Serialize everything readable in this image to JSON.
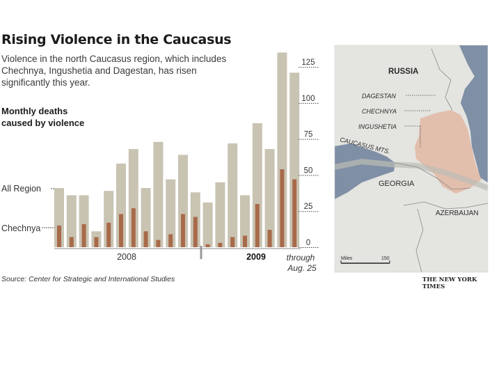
{
  "header": {
    "title": "Rising Violence in the Caucasus",
    "subtitle": "Violence in the north Caucasus region, which includes Chechnya, Ingushetia and Dagestan, has risen significantly this year.",
    "measure_line1": "Monthly deaths",
    "measure_line2": "caused by violence"
  },
  "series_labels": {
    "all": "All Region",
    "chechnya": "Chechnya"
  },
  "colors": {
    "all_region_bar": "#c9c3b2",
    "chechnya_bar": "#a86a4a",
    "axis": "#888888"
  },
  "chart_data": {
    "type": "bar",
    "title": "Rising Violence in the Caucasus",
    "ylabel": "Monthly deaths caused by violence",
    "ylim": [
      0,
      140
    ],
    "yticks": [
      "125",
      "100",
      "75",
      "50",
      "25",
      "0"
    ],
    "year_labels": [
      "2008",
      "2009"
    ],
    "note": [
      "through",
      "Aug. 25"
    ],
    "grid": false,
    "series": [
      {
        "name": "All Region",
        "values": [
          41,
          36,
          36,
          11,
          39,
          58,
          68,
          41,
          73,
          47,
          64,
          38,
          31,
          45,
          72,
          36,
          86,
          68,
          135,
          121
        ]
      },
      {
        "name": "Chechnya",
        "values": [
          15,
          7,
          16,
          7,
          17,
          23,
          27,
          11,
          5,
          9,
          23,
          21,
          2,
          3,
          7,
          8,
          30,
          12,
          54,
          47
        ]
      }
    ]
  },
  "map": {
    "labels": {
      "russia": "RUSSIA",
      "dagestan": "DAGESTAN",
      "chechnya": "CHECHNYA",
      "ingushetia": "INGUSHETIA",
      "mountains": "CAUCASUS MTS.",
      "georgia": "GEORGIA",
      "azerbaijan": "AZERBAIJAN",
      "scale_unit": "Miles",
      "scale_value": "150"
    },
    "colors": {
      "land": "#e4e4e0",
      "sea": "#7f8fa6",
      "region": "#e2b7a3"
    }
  },
  "footer": {
    "source": "Source: Center for Strategic and International Studies",
    "credit": "THE NEW YORK TIMES"
  }
}
